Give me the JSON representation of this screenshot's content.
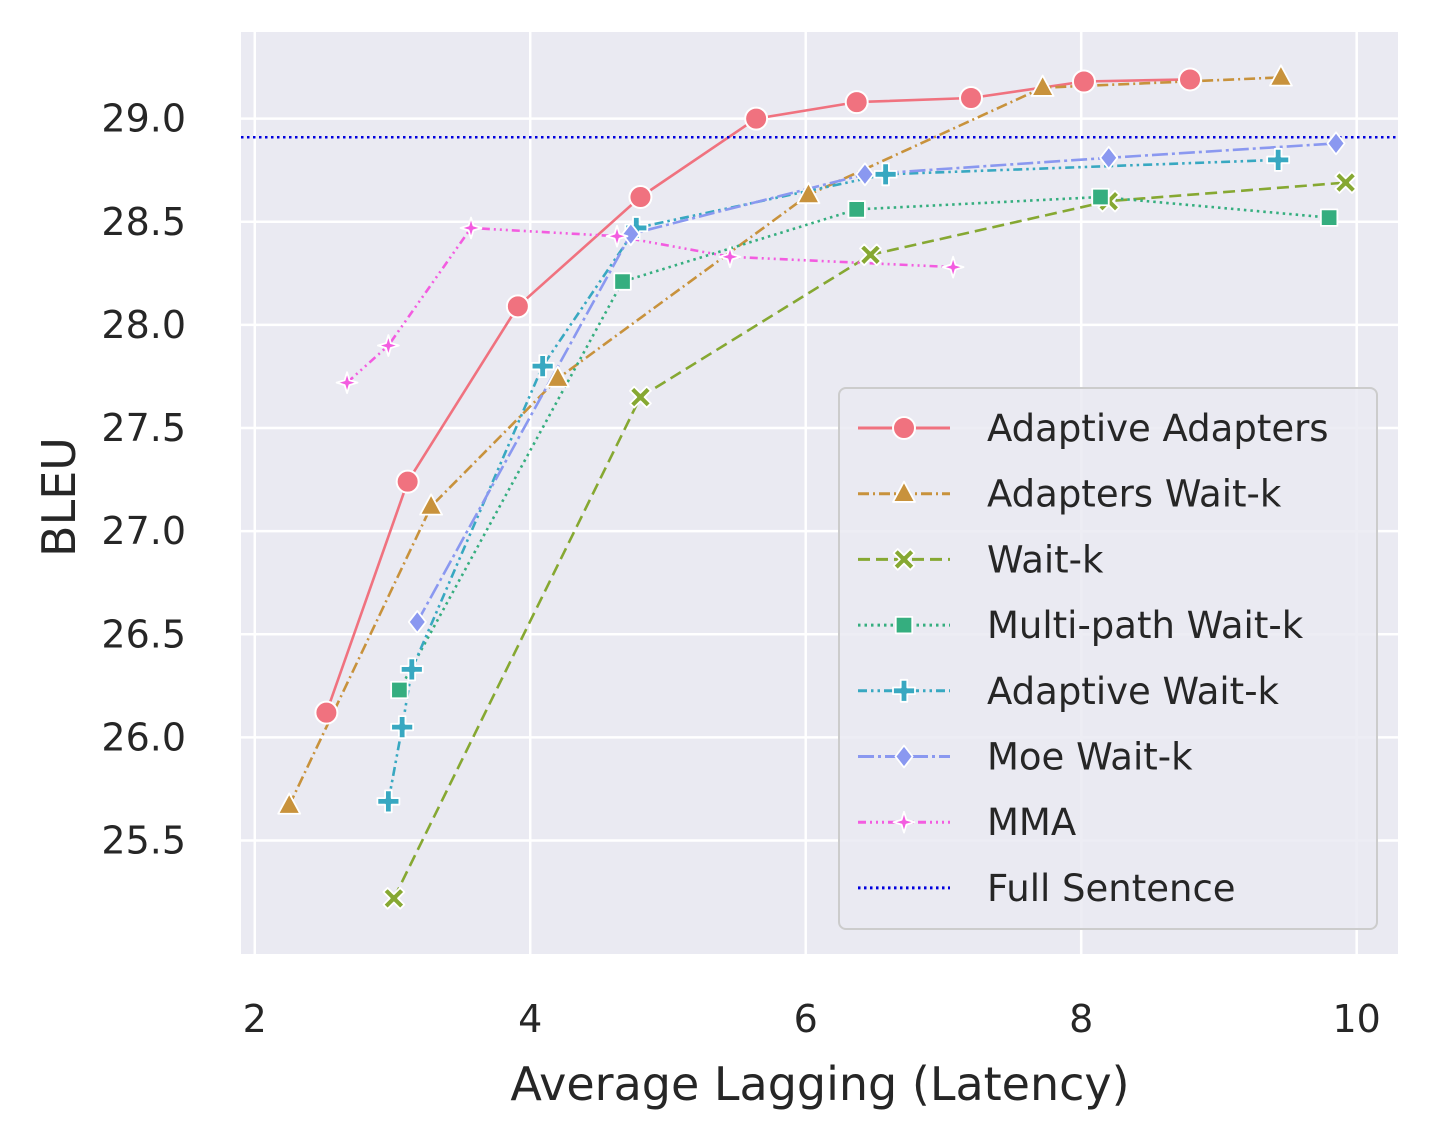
{
  "chart_data": {
    "type": "line",
    "title": "",
    "xlabel": "Average Lagging (Latency)",
    "ylabel": "BLEU",
    "xlim": [
      1.9,
      10.3
    ],
    "ylim": [
      24.95,
      29.42
    ],
    "xticks": [
      2,
      4,
      6,
      8,
      10
    ],
    "yticks": [
      25.5,
      26.0,
      26.5,
      27.0,
      27.5,
      28.0,
      28.5,
      29.0
    ],
    "xtick_labels": [
      "2",
      "4",
      "6",
      "8",
      "10"
    ],
    "ytick_labels": [
      "25.5",
      "26.0",
      "26.5",
      "27.0",
      "27.5",
      "28.0",
      "28.5",
      "29.0"
    ],
    "grid": true,
    "legend_position": "bottom-right",
    "series": [
      {
        "name": "Adaptive Adapters",
        "color": "#f0727f",
        "dash": "solid",
        "marker": "circle",
        "x": [
          2.52,
          3.11,
          3.91,
          4.8,
          5.64,
          6.37,
          7.2,
          8.02,
          8.79
        ],
        "y": [
          26.12,
          27.24,
          28.09,
          28.62,
          29.0,
          29.08,
          29.1,
          29.18,
          29.19
        ]
      },
      {
        "name": "Adapters Wait-k",
        "color": "#c8923c",
        "dash": "dashdot",
        "marker": "triangle",
        "x": [
          2.25,
          3.28,
          4.2,
          6.02,
          7.72,
          9.45
        ],
        "y": [
          25.67,
          27.12,
          27.74,
          28.63,
          29.15,
          29.2
        ]
      },
      {
        "name": "Wait-k",
        "color": "#86a832",
        "dash": "dashed",
        "marker": "x",
        "x": [
          3.01,
          4.8,
          6.47,
          8.2,
          9.92
        ],
        "y": [
          25.22,
          27.65,
          28.34,
          28.6,
          28.69
        ]
      },
      {
        "name": "Multi-path Wait-k",
        "color": "#35ae7f",
        "dash": "dotted",
        "marker": "square",
        "x": [
          3.05,
          4.67,
          6.37,
          8.14,
          9.8
        ],
        "y": [
          26.23,
          28.21,
          28.56,
          28.62,
          28.52
        ]
      },
      {
        "name": "Adaptive Wait-k",
        "color": "#38a8c1",
        "dash": "dashdotdot",
        "marker": "plus",
        "x": [
          2.97,
          3.07,
          3.14,
          4.09,
          4.77,
          6.58,
          9.43
        ],
        "y": [
          25.69,
          26.05,
          26.33,
          27.8,
          28.47,
          28.73,
          28.8
        ]
      },
      {
        "name": "Moe Wait-k",
        "color": "#8a98f0",
        "dash": "longdashdot",
        "marker": "diamond",
        "x": [
          3.18,
          4.73,
          6.43,
          8.2,
          9.85
        ],
        "y": [
          26.56,
          28.44,
          28.73,
          28.81,
          28.88
        ]
      },
      {
        "name": "MMA",
        "color": "#f35ce0",
        "dash": "dashdotdotdot",
        "marker": "star",
        "x": [
          2.67,
          2.97,
          3.57,
          4.63,
          5.45,
          7.07
        ],
        "y": [
          27.72,
          27.9,
          28.47,
          28.43,
          28.33,
          28.28
        ]
      },
      {
        "name": "Full Sentence",
        "color": "#0000dd",
        "dash": "finedotted",
        "marker": "none",
        "hline": 28.91
      }
    ]
  }
}
